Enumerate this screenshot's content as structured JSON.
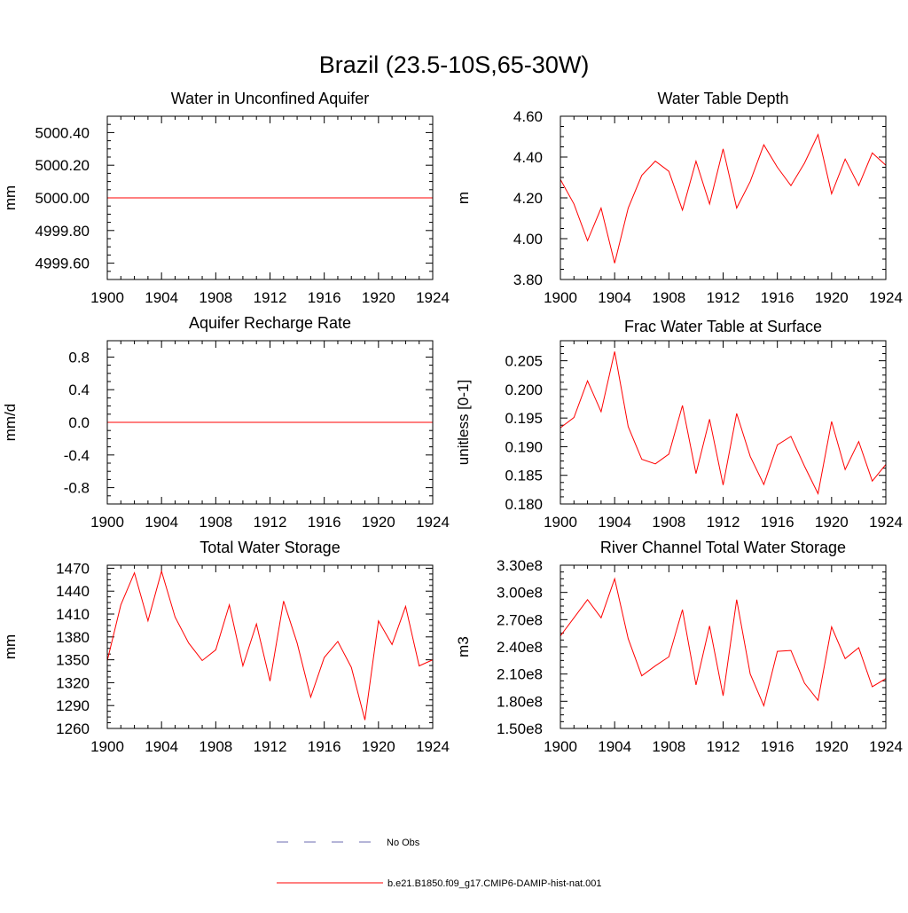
{
  "title": "Brazil (23.5-10S,65-30W)",
  "chart_data": [
    {
      "type": "line",
      "title": "Water in Unconfined Aquifer",
      "ylabel": "mm",
      "x": [
        1900,
        1901,
        1902,
        1903,
        1904,
        1905,
        1906,
        1907,
        1908,
        1909,
        1910,
        1911,
        1912,
        1913,
        1914,
        1915,
        1916,
        1917,
        1918,
        1919,
        1920,
        1921,
        1922,
        1923,
        1924
      ],
      "xlim": [
        1900,
        1924
      ],
      "xticks": [
        "1900",
        "1904",
        "1908",
        "1912",
        "1916",
        "1920",
        "1924"
      ],
      "ylim": [
        4999.5,
        5000.5
      ],
      "yticks": [
        "4999.60",
        "4999.80",
        "5000.00",
        "5000.20",
        "5000.40"
      ],
      "series": [
        {
          "values": [
            5000,
            5000,
            5000,
            5000,
            5000,
            5000,
            5000,
            5000,
            5000,
            5000,
            5000,
            5000,
            5000,
            5000,
            5000,
            5000,
            5000,
            5000,
            5000,
            5000,
            5000,
            5000,
            5000,
            5000,
            5000
          ]
        }
      ]
    },
    {
      "type": "line",
      "title": "Water Table Depth",
      "ylabel": "m",
      "x": [
        1900,
        1901,
        1902,
        1903,
        1904,
        1905,
        1906,
        1907,
        1908,
        1909,
        1910,
        1911,
        1912,
        1913,
        1914,
        1915,
        1916,
        1917,
        1918,
        1919,
        1920,
        1921,
        1922,
        1923,
        1924
      ],
      "xlim": [
        1900,
        1924
      ],
      "xticks": [
        "1900",
        "1904",
        "1908",
        "1912",
        "1916",
        "1920",
        "1924"
      ],
      "ylim": [
        3.8,
        4.6
      ],
      "yticks": [
        "3.80",
        "4.00",
        "4.20",
        "4.40",
        "4.60"
      ],
      "series": [
        {
          "values": [
            4.29,
            4.17,
            3.99,
            4.15,
            3.88,
            4.15,
            4.31,
            4.38,
            4.33,
            4.14,
            4.38,
            4.17,
            4.44,
            4.15,
            4.28,
            4.46,
            4.35,
            4.26,
            4.37,
            4.51,
            4.22,
            4.39,
            4.26,
            4.42,
            4.36
          ]
        }
      ]
    },
    {
      "type": "line",
      "title": "Aquifer Recharge Rate",
      "ylabel": "mm/d",
      "x": [
        1900,
        1901,
        1902,
        1903,
        1904,
        1905,
        1906,
        1907,
        1908,
        1909,
        1910,
        1911,
        1912,
        1913,
        1914,
        1915,
        1916,
        1917,
        1918,
        1919,
        1920,
        1921,
        1922,
        1923,
        1924
      ],
      "xlim": [
        1900,
        1924
      ],
      "xticks": [
        "1900",
        "1904",
        "1908",
        "1912",
        "1916",
        "1920",
        "1924"
      ],
      "ylim": [
        -1.0,
        1.0
      ],
      "yticks": [
        "-0.8",
        "-0.4",
        "0.0",
        "0.4",
        "0.8"
      ],
      "series": [
        {
          "values": [
            0,
            0,
            0,
            0,
            0,
            0,
            0,
            0,
            0,
            0,
            0,
            0,
            0,
            0,
            0,
            0,
            0,
            0,
            0,
            0,
            0,
            0,
            0,
            0,
            0
          ]
        }
      ]
    },
    {
      "type": "line",
      "title": "Frac Water Table at Surface",
      "ylabel": "unitless [0-1]",
      "x": [
        1900,
        1901,
        1902,
        1903,
        1904,
        1905,
        1906,
        1907,
        1908,
        1909,
        1910,
        1911,
        1912,
        1913,
        1914,
        1915,
        1916,
        1917,
        1918,
        1919,
        1920,
        1921,
        1922,
        1923,
        1924
      ],
      "xlim": [
        1900,
        1924
      ],
      "xticks": [
        "1900",
        "1904",
        "1908",
        "1912",
        "1916",
        "1920",
        "1924"
      ],
      "ylim": [
        0.18,
        0.2085
      ],
      "yticks": [
        "0.180",
        "0.185",
        "0.190",
        "0.195",
        "0.200",
        "0.205"
      ],
      "series": [
        {
          "values": [
            0.1933,
            0.1951,
            0.2015,
            0.1961,
            0.2066,
            0.1935,
            0.1878,
            0.187,
            0.1887,
            0.1972,
            0.1853,
            0.1948,
            0.1833,
            0.1958,
            0.1883,
            0.1834,
            0.1903,
            0.1918,
            0.1866,
            0.1818,
            0.1944,
            0.186,
            0.1909,
            0.184,
            0.1869
          ]
        }
      ]
    },
    {
      "type": "line",
      "title": "Total Water Storage",
      "ylabel": "mm",
      "x": [
        1900,
        1901,
        1902,
        1903,
        1904,
        1905,
        1906,
        1907,
        1908,
        1909,
        1910,
        1911,
        1912,
        1913,
        1914,
        1915,
        1916,
        1917,
        1918,
        1919,
        1920,
        1921,
        1922,
        1923,
        1924
      ],
      "xlim": [
        1900,
        1924
      ],
      "xticks": [
        "1900",
        "1904",
        "1908",
        "1912",
        "1916",
        "1920",
        "1924"
      ],
      "ylim": [
        1260,
        1474
      ],
      "yticks": [
        "1260",
        "1290",
        "1320",
        "1350",
        "1380",
        "1410",
        "1440",
        "1470"
      ],
      "series": [
        {
          "values": [
            1349,
            1422,
            1464,
            1401,
            1466,
            1406,
            1372,
            1349,
            1363,
            1422,
            1342,
            1397,
            1322,
            1427,
            1372,
            1301,
            1353,
            1374,
            1340,
            1271,
            1401,
            1370,
            1420,
            1342,
            1350
          ]
        }
      ]
    },
    {
      "type": "line",
      "title": "River Channel Total Water Storage",
      "ylabel": "m3",
      "x": [
        1900,
        1901,
        1902,
        1903,
        1904,
        1905,
        1906,
        1907,
        1908,
        1909,
        1910,
        1911,
        1912,
        1913,
        1914,
        1915,
        1916,
        1917,
        1918,
        1919,
        1920,
        1921,
        1922,
        1923,
        1924
      ],
      "xlim": [
        1900,
        1924
      ],
      "xticks": [
        "1900",
        "1904",
        "1908",
        "1912",
        "1916",
        "1920",
        "1924"
      ],
      "ylim": [
        150000000.0,
        330000000.0
      ],
      "yticks": [
        "1.50e8",
        "1.80e8",
        "2.10e8",
        "2.40e8",
        "2.70e8",
        "3.00e8",
        "3.30e8"
      ],
      "series": [
        {
          "values": [
            252000000.0,
            272000000.0,
            292000000.0,
            272000000.0,
            315000000.0,
            249000000.0,
            208000000.0,
            219000000.0,
            229000000.0,
            281000000.0,
            198000000.0,
            263000000.0,
            186000000.0,
            292000000.0,
            210000000.0,
            175000000.0,
            235000000.0,
            236000000.0,
            200000000.0,
            181000000.0,
            262000000.0,
            227000000.0,
            239000000.0,
            196000000.0,
            205000000.0
          ]
        }
      ]
    }
  ],
  "legend": {
    "entries": [
      {
        "label": "No Obs",
        "color": "#6b6bb0",
        "style": "dashed"
      },
      {
        "label": "b.e21.B1850.f09_g17.CMIP6-DAMIP-hist-nat.001",
        "color": "#ff0000",
        "style": "solid"
      }
    ]
  }
}
